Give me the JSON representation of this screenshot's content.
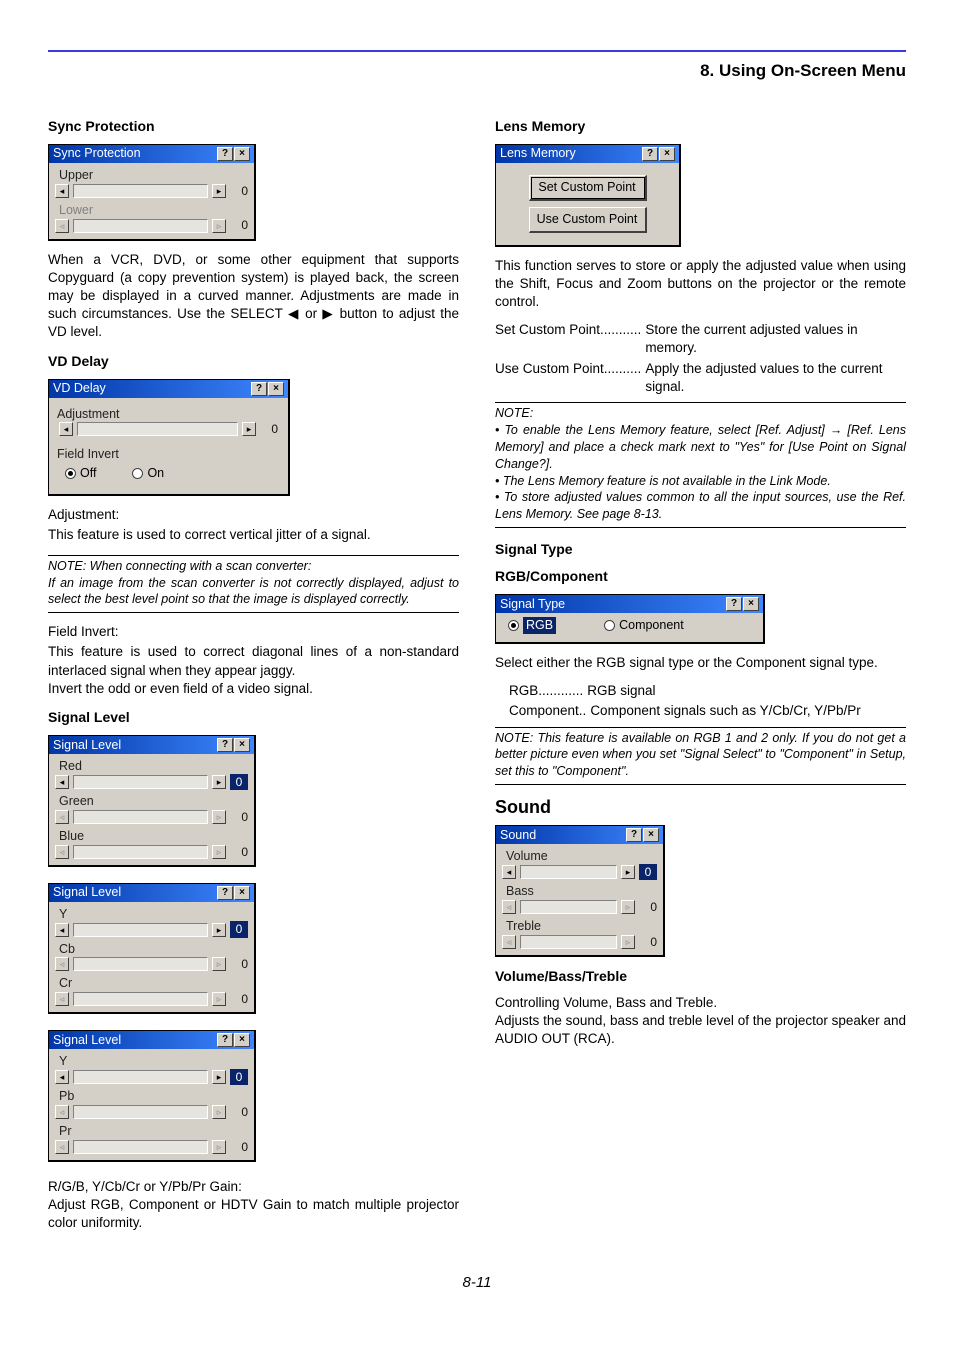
{
  "chapter_title": "8. Using On-Screen Menu",
  "page_number": "8-11",
  "dialog_colors": {
    "titlebar_gradient_from": "#0036a8",
    "titlebar_gradient_to": "#3f87ff",
    "body_bg": "#d4d0c8",
    "trough_bg": "#e6e4df",
    "highlight_bg": "#0a246a",
    "highlight_fg": "#ffffff"
  },
  "dialog_icons": {
    "help": "?",
    "close": "×",
    "arrow_left": "◂",
    "arrow_right": "▸",
    "arrow_left_small": "◃",
    "arrow_right_small": "▹"
  },
  "left": {
    "sync_protection": {
      "heading": "Sync Protection",
      "dialog_title": "Sync Protection",
      "fields": [
        {
          "label": "Upper",
          "value": "0",
          "enabled": true
        },
        {
          "label": "Lower",
          "value": "0",
          "enabled": false
        }
      ],
      "text": "When a VCR, DVD, or some other equipment that supports Copyguard (a copy prevention system) is played back, the screen may be displayed in a curved manner. Adjustments are made in such circumstances. Use the SELECT ◀ or ▶ button to adjust the VD level."
    },
    "vd_delay": {
      "heading": "VD Delay",
      "dialog_title": "VD Delay",
      "adjustment_label": "Adjustment",
      "adjustment_value": "0",
      "field_invert_label": "Field Invert",
      "option_off": "Off",
      "option_on": "On",
      "selected": "Off",
      "adj_head": "Adjustment:",
      "adj_text": "This feature is used to correct vertical jitter of a signal.",
      "note": "NOTE: When connecting with a scan converter:\nIf an image from the scan converter is not correctly displayed, adjust to select the best level point so that the image is displayed correctly.",
      "fi_head": "Field Invert:",
      "fi_text1": "This feature is used to correct diagonal lines of a non-standard interlaced signal when they appear jaggy.",
      "fi_text2": "Invert the odd or even field of a video signal."
    },
    "signal_level": {
      "heading": "Signal Level",
      "dialogs": [
        {
          "title": "Signal Level",
          "rows": [
            {
              "label": "Red",
              "val": "0",
              "first": true
            },
            {
              "label": "Green",
              "val": "0",
              "first": false
            },
            {
              "label": "Blue",
              "val": "0",
              "first": false
            }
          ]
        },
        {
          "title": "Signal Level",
          "rows": [
            {
              "label": "Y",
              "val": "0",
              "first": true
            },
            {
              "label": "Cb",
              "val": "0",
              "first": false
            },
            {
              "label": "Cr",
              "val": "0",
              "first": false
            }
          ]
        },
        {
          "title": "Signal Level",
          "rows": [
            {
              "label": "Y",
              "val": "0",
              "first": true
            },
            {
              "label": "Pb",
              "val": "0",
              "first": false
            },
            {
              "label": "Pr",
              "val": "0",
              "first": false
            }
          ]
        }
      ],
      "gain_head": "R/G/B, Y/Cb/Cr or Y/Pb/Pr Gain:",
      "gain_text": "Adjust RGB, Component or HDTV Gain to match multiple projector color uniformity."
    }
  },
  "right": {
    "lens_memory": {
      "heading": "Lens Memory",
      "dialog_title": "Lens Memory",
      "set_btn": "Set Custom Point",
      "use_btn": "Use Custom Point",
      "text": "This function serves to store or apply the adjusted value when using the Shift, Focus and Zoom buttons on the projector or the remote control.",
      "defs": [
        {
          "term": "Set Custom Point",
          "dots": " ........... ",
          "def": "Store the current adjusted values in memory."
        },
        {
          "term": "Use Custom Point",
          "dots": " .......... ",
          "def": "Apply the adjusted values to the current signal."
        }
      ],
      "note_head": "NOTE:",
      "notes": [
        "• To enable the Lens Memory feature, select [Ref. Adjust] → [Ref. Lens Memory] and place a check mark next to \"Yes\" for [Use Point on Signal Change?].",
        "• The Lens Memory feature is not available in the Link Mode.",
        "• To store adjusted values common to all the input sources, use the Ref. Lens Memory. See page 8-13."
      ]
    },
    "signal_type": {
      "heading": "Signal Type",
      "subheading": "RGB/Component",
      "dialog_title": "Signal Type",
      "option_rgb": "RGB",
      "option_component": "Component",
      "selected": "RGB",
      "text": "Select either the RGB signal type or the Component signal type.",
      "defs": [
        {
          "term": "RGB",
          "dots": " ............ ",
          "def": "RGB signal"
        },
        {
          "term": "Component",
          "dots": " .. ",
          "def": "Component signals such as Y/Cb/Cr, Y/Pb/Pr"
        }
      ],
      "note": "NOTE: This feature is available on RGB 1 and 2 only. If you do not get a better picture even when you set \"Signal Select\" to \"Component\" in Setup, set this to \"Component\"."
    },
    "sound": {
      "heading": "Sound",
      "dialog_title": "Sound",
      "rows": [
        {
          "label": "Volume",
          "val": "0",
          "first": true
        },
        {
          "label": "Bass",
          "val": "0",
          "first": false
        },
        {
          "label": "Treble",
          "val": "0",
          "first": false
        }
      ],
      "subheading": "Volume/Bass/Treble",
      "text1": "Controlling Volume, Bass and Treble.",
      "text2": "Adjusts the sound, bass and treble level of the projector speaker and AUDIO OUT (RCA)."
    }
  }
}
